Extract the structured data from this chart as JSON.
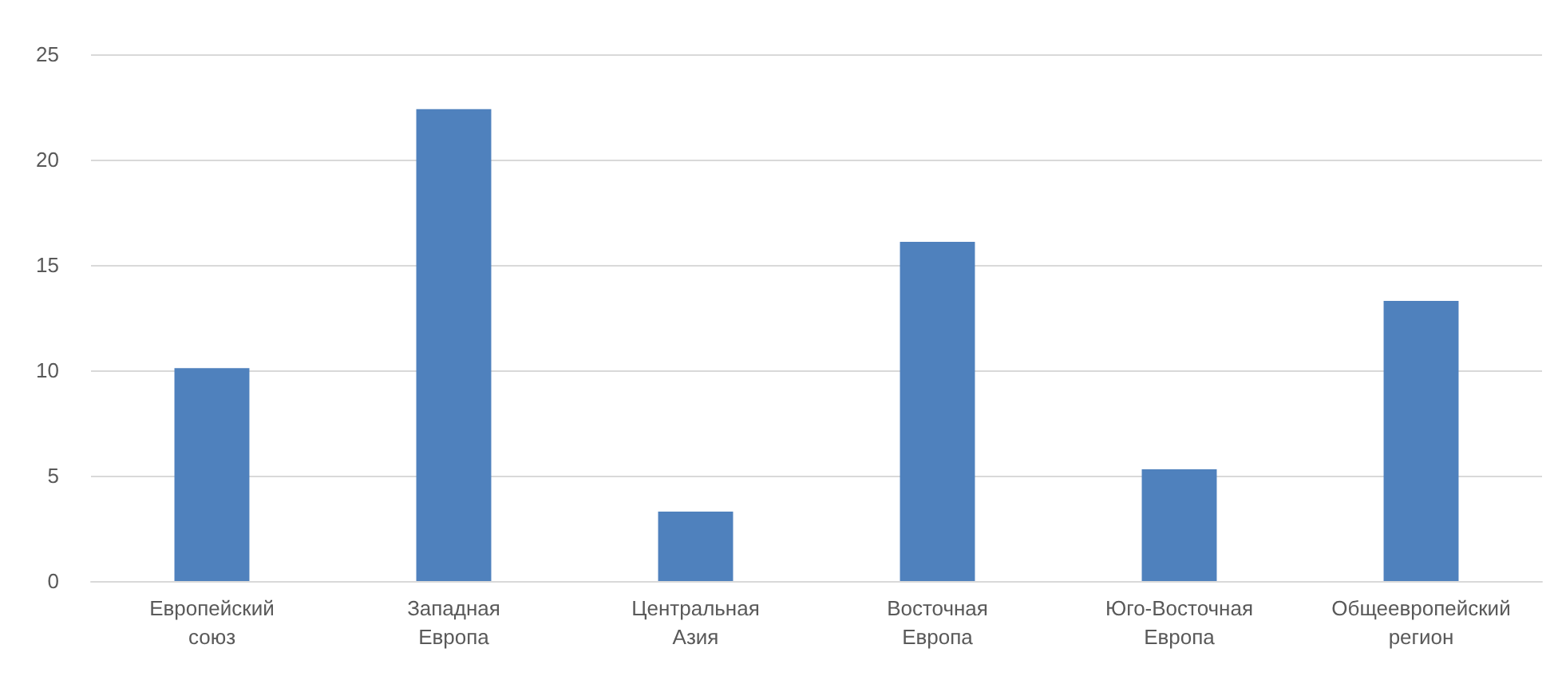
{
  "chart_data": {
    "type": "bar",
    "categories": [
      "Европейский союз",
      "Западная Европа",
      "Центральная Азия",
      "Восточная Европа",
      "Юго-Восточная Европа",
      "Общеевропейский регион"
    ],
    "values": [
      10.1,
      22.4,
      3.3,
      16.1,
      5.3,
      13.3
    ],
    "color": "#4f81bd",
    "ylim": [
      0,
      25
    ],
    "yticks": [
      0,
      5,
      10,
      15,
      20,
      25
    ],
    "grid": "y"
  }
}
